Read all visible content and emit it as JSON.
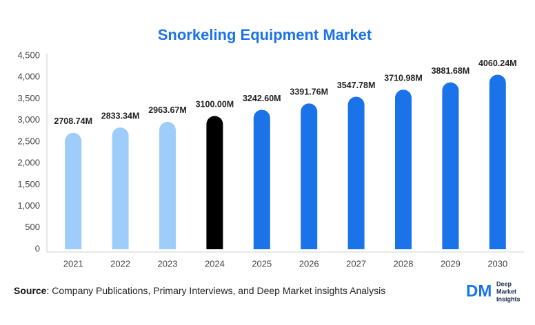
{
  "chart_data": {
    "type": "bar",
    "title": "Snorkeling Equipment Market",
    "categories": [
      "2021",
      "2022",
      "2023",
      "2024",
      "2025",
      "2026",
      "2027",
      "2028",
      "2029",
      "2030"
    ],
    "values": [
      2708.74,
      2833.34,
      2963.67,
      3100.0,
      3242.6,
      3391.76,
      3547.78,
      3710.98,
      3881.68,
      4060.24
    ],
    "value_labels": [
      "2708.74M",
      "2833.34M",
      "2963.67M",
      "3100.00M",
      "3242.60M",
      "3391.76M",
      "3547.78M",
      "3710.98M",
      "3881.68M",
      "4060.24M"
    ],
    "colors": [
      "#9fcdfb",
      "#9fcdfb",
      "#9fcdfb",
      "#000000",
      "#1a73e8",
      "#1a73e8",
      "#1a73e8",
      "#1a73e8",
      "#1a73e8",
      "#1a73e8"
    ],
    "ylim": [
      0,
      4500
    ],
    "yticks": [
      0,
      500,
      {
        "value": 1000,
        "label": "1,000"
      },
      {
        "value": 1500,
        "label": "1,500"
      },
      {
        "value": 2000,
        "label": "2,000"
      },
      {
        "value": 2500,
        "label": "2,500"
      },
      {
        "value": 3000,
        "label": "3,000"
      },
      {
        "value": 3500,
        "label": "3,500"
      },
      {
        "value": 4000,
        "label": "4,000"
      },
      {
        "value": 4500,
        "label": "4,500"
      }
    ],
    "grid": false
  },
  "footer": {
    "source_label": "Source",
    "source_text": ": Company Publications, Primary Interviews, and Deep Market insights Analysis",
    "logo_mark": "DM",
    "logo_text": [
      "Deep",
      "Market",
      "Insights"
    ]
  }
}
